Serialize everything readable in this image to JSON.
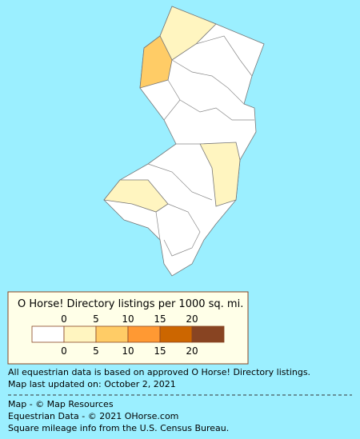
{
  "legend": {
    "title": "O Horse! Directory listings per 1000 sq. mi.",
    "ticks": [
      0,
      5,
      10,
      15,
      20
    ],
    "colors": [
      "#ffffff",
      "#fff5c0",
      "#ffcc66",
      "#ff9933",
      "#cc6600",
      "#884422"
    ]
  },
  "notes": [
    "All equestrian data is based on approved O Horse! Directory listings.",
    "Map last updated on: October 2, 2021"
  ],
  "credits": [
    "Map - © Map Resources",
    "Equestrian Data - © 2021 OHorse.com",
    "Square mileage info from the U.S. Census Bureau."
  ]
}
